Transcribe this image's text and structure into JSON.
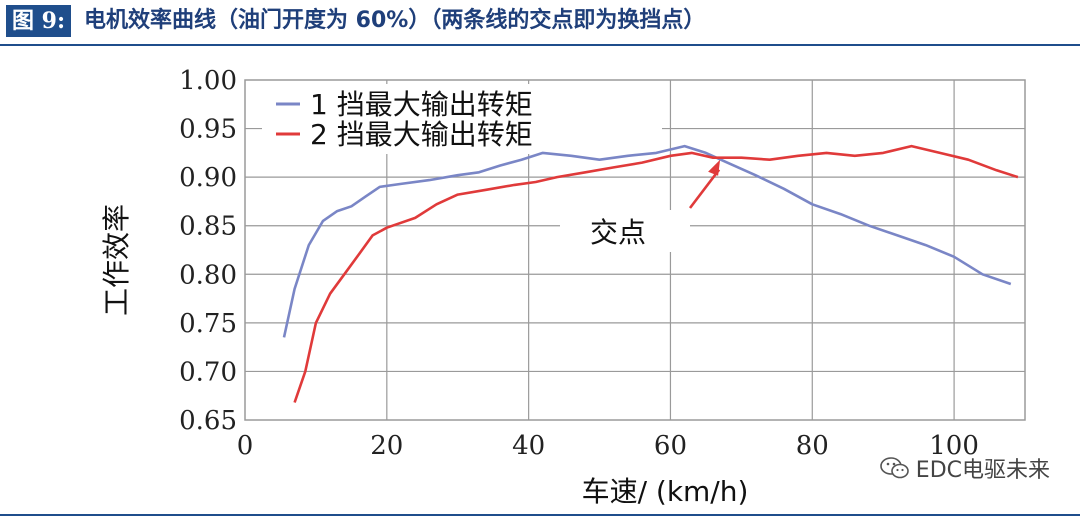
{
  "header": {
    "figure_label": "图 9:",
    "title": "电机效率曲线（油门开度为 60%）（两条线的交点即为换挡点）"
  },
  "watermark": {
    "text": "EDC电驱未来",
    "icon": "wechat-icon"
  },
  "chart_data": {
    "type": "line",
    "xlabel": "车速/ (km/h)",
    "ylabel": "工作效率",
    "xlim": [
      0,
      110
    ],
    "ylim": [
      0.65,
      1.0
    ],
    "x_ticks": [
      "0",
      "20",
      "40",
      "60",
      "80",
      "100"
    ],
    "y_ticks": [
      "0.65",
      "0.70",
      "0.75",
      "0.80",
      "0.85",
      "0.90",
      "0.95",
      "1.00"
    ],
    "grid": true,
    "legend_position": "top-left",
    "series": [
      {
        "name": "1 挡最大输出转矩",
        "color": "#7a86c6",
        "points": [
          [
            5.5,
            0.735
          ],
          [
            7,
            0.785
          ],
          [
            9,
            0.83
          ],
          [
            11,
            0.855
          ],
          [
            13,
            0.865
          ],
          [
            15,
            0.87
          ],
          [
            17,
            0.88
          ],
          [
            19,
            0.89
          ],
          [
            22,
            0.893
          ],
          [
            26,
            0.897
          ],
          [
            30,
            0.902
          ],
          [
            33,
            0.905
          ],
          [
            36,
            0.912
          ],
          [
            39,
            0.918
          ],
          [
            42,
            0.925
          ],
          [
            46,
            0.922
          ],
          [
            50,
            0.918
          ],
          [
            54,
            0.922
          ],
          [
            58,
            0.925
          ],
          [
            62,
            0.932
          ],
          [
            65,
            0.925
          ],
          [
            68,
            0.915
          ],
          [
            72,
            0.902
          ],
          [
            76,
            0.888
          ],
          [
            80,
            0.872
          ],
          [
            84,
            0.862
          ],
          [
            88,
            0.85
          ],
          [
            92,
            0.84
          ],
          [
            96,
            0.83
          ],
          [
            100,
            0.818
          ],
          [
            104,
            0.8
          ],
          [
            108,
            0.79
          ]
        ]
      },
      {
        "name": "2 挡最大输出转矩",
        "color": "#e03a3a",
        "points": [
          [
            7,
            0.668
          ],
          [
            8.5,
            0.7
          ],
          [
            10,
            0.75
          ],
          [
            12,
            0.78
          ],
          [
            14,
            0.8
          ],
          [
            16,
            0.82
          ],
          [
            18,
            0.84
          ],
          [
            20,
            0.848
          ],
          [
            24,
            0.858
          ],
          [
            27,
            0.872
          ],
          [
            30,
            0.882
          ],
          [
            34,
            0.887
          ],
          [
            38,
            0.892
          ],
          [
            41,
            0.895
          ],
          [
            44,
            0.9
          ],
          [
            48,
            0.905
          ],
          [
            52,
            0.91
          ],
          [
            56,
            0.915
          ],
          [
            60,
            0.922
          ],
          [
            63,
            0.925
          ],
          [
            66,
            0.92
          ],
          [
            70,
            0.92
          ],
          [
            74,
            0.918
          ],
          [
            78,
            0.922
          ],
          [
            82,
            0.925
          ],
          [
            86,
            0.922
          ],
          [
            90,
            0.925
          ],
          [
            94,
            0.932
          ],
          [
            98,
            0.925
          ],
          [
            102,
            0.918
          ],
          [
            106,
            0.907
          ],
          [
            109,
            0.9
          ]
        ]
      }
    ],
    "annotation": {
      "text": "交点",
      "x": 67,
      "y": 0.92
    }
  }
}
